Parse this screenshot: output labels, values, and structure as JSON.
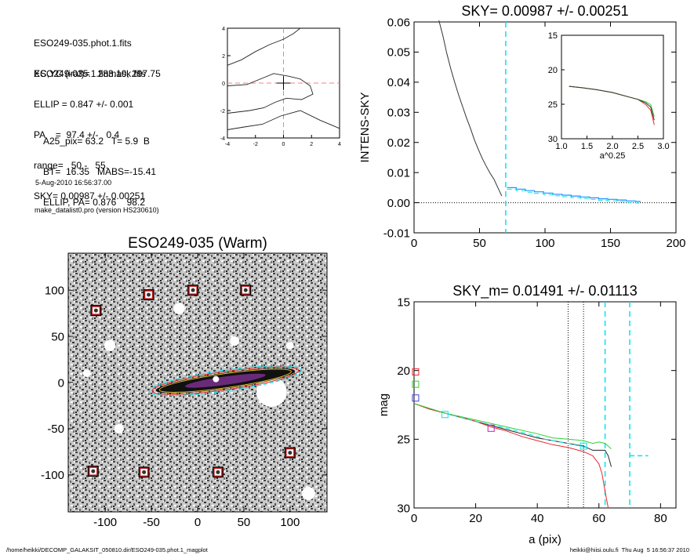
{
  "info": {
    "lines_a": [
      "ESO249-035.phot.1.fits",
      "ESO249-035.1.finmask.fits"
    ],
    "lines_b": [
      "XC,YC (iraf)=   283.10, 297.75",
      "ELLIP = 0.847 +/- 0.001",
      "PA    =  97.4 +/-   0.4",
      "range=   50.-   55.",
      "SKY= 0.00987 +/- 0.00251"
    ],
    "lines_c": [
      "A25_pix= 63.2   T= 5.9  B",
      "BT=  16.35   MABS=-15.41",
      "ELLIP, PA= 0.876    98.2"
    ],
    "lines_d": [
      "5-Aug-2010 16:56:37.00",
      "make_datalist0.pro (version HS230610)"
    ]
  },
  "footer": {
    "left": "/home/heikki/DECOMP_GALAKSIT_050810.dir/ESO249-035.phot.1_magplot",
    "right": "heikki@hiisi.oulu.fi  Thu Aug  5 16:56:37 2010"
  },
  "colors": {
    "sky_marker": "#00e5ee",
    "profile": "#333333",
    "model": "#1e90ff",
    "red": "#e8262a",
    "green": "#30d030",
    "magenta": "#c020c0",
    "blue": "#4040e0"
  },
  "chart_data": [
    {
      "id": "contour",
      "type": "line",
      "title": "",
      "xlim": [
        -4,
        4
      ],
      "ylim": [
        -4,
        4
      ],
      "xticks": [
        -4,
        -2,
        0,
        2,
        4
      ],
      "yticks": [
        -4,
        -2,
        0,
        2,
        4
      ],
      "center": [
        0,
        0
      ],
      "contours": [
        [
          [
            -4,
            1.3
          ],
          [
            -3.0,
            1.7
          ],
          [
            -2.0,
            2.3
          ],
          [
            -1.0,
            2.8
          ],
          [
            0.0,
            3.2
          ],
          [
            0.7,
            3.6
          ],
          [
            1.2,
            4.0
          ]
        ],
        [
          [
            -4,
            -0.2
          ],
          [
            -2.6,
            -0.1
          ],
          [
            -1.4,
            0.4
          ],
          [
            -0.7,
            0.7
          ],
          [
            0.4,
            0.5
          ],
          [
            1.2,
            0.3
          ],
          [
            1.9,
            -0.2
          ],
          [
            2.1,
            -0.8
          ],
          [
            1.3,
            -1.2
          ],
          [
            0.2,
            -1.1
          ],
          [
            -0.6,
            -1.4
          ],
          [
            -1.4,
            -1.8
          ],
          [
            -2.4,
            -2.0
          ],
          [
            -4,
            -2.2
          ]
        ],
        [
          [
            -4,
            -3.4
          ],
          [
            -2.8,
            -3.2
          ],
          [
            -1.5,
            -3.0
          ],
          [
            -0.2,
            -2.4
          ],
          [
            1.2,
            -2.0
          ],
          [
            2.6,
            -2.7
          ],
          [
            4.0,
            -3.3
          ]
        ]
      ]
    },
    {
      "id": "sky",
      "type": "line",
      "title": "SKY= 0.00987 +/- 0.00251",
      "xlabel": "",
      "ylabel": "INTENS-SKY",
      "xlim": [
        0,
        200
      ],
      "ylim": [
        -0.01,
        0.06
      ],
      "xticks": [
        0,
        50,
        100,
        150,
        200
      ],
      "yticks": [
        -0.01,
        0.0,
        0.01,
        0.02,
        0.03,
        0.04,
        0.05,
        0.06
      ],
      "ytick_labels": [
        "-0.01",
        "0.00",
        "0.01",
        "0.02",
        "0.03",
        "0.04",
        "0.05",
        "0.06"
      ],
      "sky_range_x": 70,
      "profile": {
        "x": [
          19,
          22,
          25,
          28,
          31,
          34,
          37,
          40,
          43,
          46,
          49,
          52,
          55,
          58,
          61,
          64,
          67
        ],
        "y": [
          0.0605,
          0.0555,
          0.0495,
          0.0445,
          0.04,
          0.0358,
          0.032,
          0.0282,
          0.0248,
          0.021,
          0.0178,
          0.0148,
          0.0122,
          0.0098,
          0.0078,
          0.005,
          0.0022
        ]
      },
      "model_steps": {
        "x": [
          71,
          78,
          85,
          92,
          99,
          106,
          113,
          120,
          127,
          134,
          141,
          148,
          155,
          162,
          169,
          173
        ],
        "y": [
          0.005,
          0.0045,
          0.004,
          0.0036,
          0.0032,
          0.0028,
          0.0025,
          0.0022,
          0.0019,
          0.0016,
          0.0013,
          0.0011,
          0.0009,
          0.0006,
          0.0004,
          0.0003
        ]
      },
      "inset": {
        "xlabel": "a^0.25",
        "xlim": [
          1.0,
          3.0
        ],
        "ylim": [
          30,
          15
        ],
        "xticks": [
          1.0,
          1.5,
          2.0,
          2.5,
          3.0
        ],
        "yticks": [
          15,
          20,
          25,
          30
        ],
        "xtick_labels": [
          "1.0",
          "1.5",
          "2.0",
          "2.5",
          "3.0"
        ],
        "curve_x": [
          1.15,
          1.4,
          1.7,
          2.0,
          2.3,
          2.5,
          2.65,
          2.75,
          2.82
        ],
        "curve_y": [
          22.4,
          22.6,
          22.9,
          23.3,
          23.9,
          24.3,
          24.8,
          25.4,
          27.3
        ]
      }
    },
    {
      "id": "image",
      "type": "scatter",
      "title": "ESO249-035 (Warm)",
      "xlim": [
        -140,
        140
      ],
      "ylim": [
        -140,
        140
      ],
      "xticks": [
        -100,
        -50,
        0,
        50,
        100
      ],
      "yticks": [
        -100,
        -50,
        0,
        50,
        100
      ],
      "galaxy": {
        "center": [
          30,
          2
        ],
        "semi_major": 80,
        "semi_minor": 9,
        "angle_deg": 8
      },
      "stars": [
        {
          "x": -110,
          "y": 78
        },
        {
          "x": -53,
          "y": 95
        },
        {
          "x": -5,
          "y": 100
        },
        {
          "x": 52,
          "y": 100
        },
        {
          "x": 100,
          "y": -76
        },
        {
          "x": -113,
          "y": -96
        },
        {
          "x": -58,
          "y": -97
        },
        {
          "x": 22,
          "y": -97
        }
      ]
    },
    {
      "id": "mag",
      "type": "line",
      "title": "SKY_m=  0.01491 +/- 0.01113",
      "xlabel": "a (pix)",
      "ylabel": "mag",
      "xlim": [
        0,
        85
      ],
      "ylim": [
        30,
        15
      ],
      "xticks": [
        0,
        20,
        40,
        60,
        80
      ],
      "yticks": [
        15,
        20,
        25,
        30
      ],
      "vlines_dotted": [
        50,
        55
      ],
      "vlines_dashed": [
        62,
        70
      ],
      "sky_mag_x": [
        70,
        76
      ],
      "sky_mag_y": 26.2,
      "series": [
        {
          "color": "black",
          "x": [
            0,
            5,
            10,
            15,
            20,
            25,
            30,
            35,
            40,
            45,
            50,
            55,
            58,
            60,
            62,
            63,
            64
          ],
          "y": [
            22.4,
            22.8,
            23.1,
            23.4,
            23.7,
            24.0,
            24.3,
            24.6,
            24.9,
            25.1,
            25.3,
            25.5,
            25.8,
            25.8,
            25.8,
            26.2,
            27.0
          ]
        },
        {
          "color": "red",
          "x": [
            0,
            5,
            10,
            15,
            20,
            25,
            30,
            35,
            40,
            45,
            50,
            55,
            58,
            60,
            61,
            62,
            63
          ],
          "y": [
            22.4,
            22.8,
            23.1,
            23.4,
            23.7,
            24.1,
            24.4,
            24.8,
            25.1,
            25.4,
            25.6,
            25.9,
            26.2,
            26.8,
            27.5,
            28.8,
            30.0
          ]
        },
        {
          "color": "green",
          "x": [
            0,
            10,
            20,
            30,
            40,
            45,
            50,
            55,
            58,
            60,
            62,
            64
          ],
          "y": [
            22.4,
            23.1,
            23.6,
            24.1,
            24.6,
            24.9,
            25.0,
            25.1,
            25.3,
            25.2,
            25.3,
            25.7
          ]
        },
        {
          "color": "cyan",
          "x": [
            10,
            20,
            30,
            40,
            42,
            50,
            56
          ],
          "y": [
            23.1,
            23.7,
            24.2,
            24.8,
            25.0,
            25.3,
            25.6
          ]
        }
      ],
      "markers": [
        {
          "x": 0.5,
          "y": 20.1,
          "color": "red"
        },
        {
          "x": 0.5,
          "y": 21.0,
          "color": "green"
        },
        {
          "x": 0.5,
          "y": 22.0,
          "color": "blue"
        },
        {
          "x": 10,
          "y": 23.2,
          "color": "cyan"
        },
        {
          "x": 25,
          "y": 24.2,
          "color": "magenta"
        },
        {
          "x": 55,
          "y": 25.5,
          "color": "cyan"
        }
      ]
    }
  ]
}
